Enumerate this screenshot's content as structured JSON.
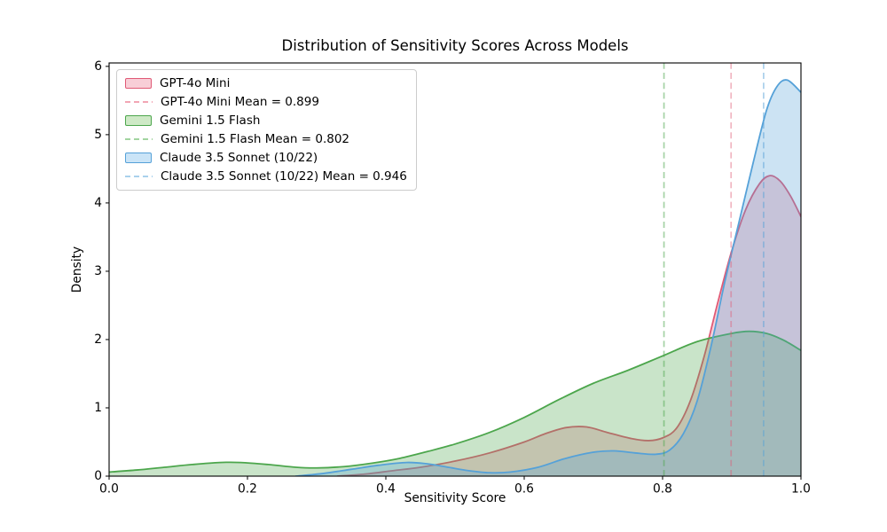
{
  "figure": {
    "title": "Distribution of Sensitivity Scores Across Models",
    "xlabel": "Sensitivity Score",
    "ylabel": "Density"
  },
  "legend": {
    "position": "upper-left",
    "items": [
      {
        "label": "GPT-4o Mini",
        "kind": "patch",
        "line_color": "#E05A76",
        "fill_color": "#F8CED7"
      },
      {
        "label": "GPT-4o Mini Mean = 0.899",
        "kind": "dash",
        "line_color": "#F2A6B4"
      },
      {
        "label": "Gemini 1.5 Flash",
        "kind": "patch",
        "line_color": "#4CA64C",
        "fill_color": "#CEE9C6"
      },
      {
        "label": "Gemini 1.5 Flash Mean = 0.802",
        "kind": "dash",
        "line_color": "#A2D4A0"
      },
      {
        "label": "Claude 3.5 Sonnet (10/22)",
        "kind": "patch",
        "line_color": "#55A1D8",
        "fill_color": "#CAE4F7"
      },
      {
        "label": "Claude 3.5 Sonnet (10/22) Mean = 0.946",
        "kind": "dash",
        "line_color": "#A9D1EC"
      }
    ]
  },
  "chart_data": {
    "type": "area",
    "subtype": "kde-density",
    "title": "Distribution of Sensitivity Scores Across Models",
    "xlabel": "Sensitivity Score",
    "ylabel": "Density",
    "xlim": [
      0.0,
      1.0
    ],
    "ylim": [
      0,
      6.05
    ],
    "xticks": [
      0.0,
      0.2,
      0.4,
      0.6,
      0.8,
      1.0
    ],
    "xtick_labels": [
      "0.0",
      "0.2",
      "0.4",
      "0.6",
      "0.8",
      "1.0"
    ],
    "yticks": [
      0,
      1,
      2,
      3,
      4,
      5,
      6
    ],
    "ytick_labels": [
      "0",
      "1",
      "2",
      "3",
      "4",
      "5",
      "6"
    ],
    "grid": false,
    "legend_position": "upper left",
    "series": [
      {
        "name": "GPT-4o Mini",
        "slug": "gpt-4o-mini",
        "mean": 0.899,
        "line_color": "#E05A76",
        "fill_color": "rgba(224, 90, 118, 0.27)",
        "mean_line_color": "rgba(224, 90, 118, 0.45)",
        "points": [
          [
            0.33,
            0.0
          ],
          [
            0.37,
            0.03
          ],
          [
            0.41,
            0.08
          ],
          [
            0.45,
            0.13
          ],
          [
            0.5,
            0.22
          ],
          [
            0.55,
            0.34
          ],
          [
            0.6,
            0.5
          ],
          [
            0.63,
            0.62
          ],
          [
            0.66,
            0.71
          ],
          [
            0.69,
            0.72
          ],
          [
            0.72,
            0.64
          ],
          [
            0.755,
            0.55
          ],
          [
            0.78,
            0.52
          ],
          [
            0.8,
            0.56
          ],
          [
            0.82,
            0.7
          ],
          [
            0.84,
            1.1
          ],
          [
            0.86,
            1.75
          ],
          [
            0.88,
            2.55
          ],
          [
            0.9,
            3.3
          ],
          [
            0.92,
            3.9
          ],
          [
            0.94,
            4.28
          ],
          [
            0.955,
            4.4
          ],
          [
            0.97,
            4.32
          ],
          [
            0.985,
            4.1
          ],
          [
            1.0,
            3.8
          ]
        ]
      },
      {
        "name": "Gemini 1.5 Flash",
        "slug": "gemini-1-5-flash",
        "mean": 0.802,
        "line_color": "#4CA64C",
        "fill_color": "rgba(76, 166, 76, 0.30)",
        "mean_line_color": "rgba(76, 166, 76, 0.50)",
        "points": [
          [
            0.0,
            0.06
          ],
          [
            0.04,
            0.09
          ],
          [
            0.08,
            0.13
          ],
          [
            0.12,
            0.17
          ],
          [
            0.16,
            0.2
          ],
          [
            0.19,
            0.2
          ],
          [
            0.23,
            0.17
          ],
          [
            0.27,
            0.13
          ],
          [
            0.3,
            0.12
          ],
          [
            0.34,
            0.14
          ],
          [
            0.38,
            0.19
          ],
          [
            0.42,
            0.26
          ],
          [
            0.46,
            0.36
          ],
          [
            0.5,
            0.47
          ],
          [
            0.55,
            0.64
          ],
          [
            0.6,
            0.86
          ],
          [
            0.65,
            1.12
          ],
          [
            0.7,
            1.36
          ],
          [
            0.75,
            1.55
          ],
          [
            0.8,
            1.76
          ],
          [
            0.85,
            1.97
          ],
          [
            0.9,
            2.09
          ],
          [
            0.925,
            2.12
          ],
          [
            0.95,
            2.09
          ],
          [
            0.975,
            1.99
          ],
          [
            1.0,
            1.84
          ]
        ]
      },
      {
        "name": "Claude 3.5 Sonnet (10/22)",
        "slug": "claude-3-5-sonnet",
        "mean": 0.946,
        "line_color": "#55A1D8",
        "fill_color": "rgba(85, 161, 216, 0.30)",
        "mean_line_color": "rgba(85, 161, 216, 0.50)",
        "points": [
          [
            0.27,
            0.0
          ],
          [
            0.31,
            0.04
          ],
          [
            0.35,
            0.1
          ],
          [
            0.39,
            0.16
          ],
          [
            0.43,
            0.2
          ],
          [
            0.46,
            0.18
          ],
          [
            0.49,
            0.13
          ],
          [
            0.52,
            0.08
          ],
          [
            0.55,
            0.05
          ],
          [
            0.58,
            0.06
          ],
          [
            0.62,
            0.13
          ],
          [
            0.66,
            0.26
          ],
          [
            0.7,
            0.35
          ],
          [
            0.73,
            0.37
          ],
          [
            0.76,
            0.34
          ],
          [
            0.79,
            0.32
          ],
          [
            0.81,
            0.38
          ],
          [
            0.83,
            0.62
          ],
          [
            0.85,
            1.1
          ],
          [
            0.87,
            1.9
          ],
          [
            0.89,
            2.85
          ],
          [
            0.91,
            3.7
          ],
          [
            0.93,
            4.55
          ],
          [
            0.95,
            5.35
          ],
          [
            0.965,
            5.7
          ],
          [
            0.98,
            5.8
          ],
          [
            1.0,
            5.62
          ]
        ]
      }
    ]
  }
}
